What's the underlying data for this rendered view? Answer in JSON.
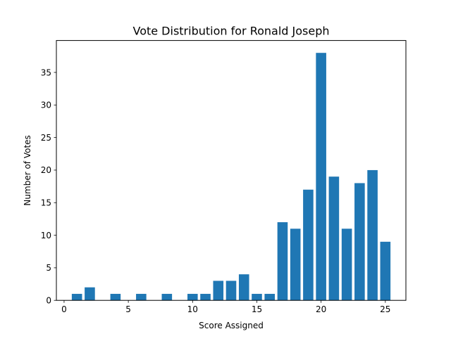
{
  "chart_data": {
    "type": "bar",
    "title": "Vote Distribution for Ronald Joseph",
    "xlabel": "Score Assigned",
    "ylabel": "Number of Votes",
    "x": [
      1,
      2,
      4,
      6,
      8,
      10,
      11,
      12,
      13,
      14,
      15,
      16,
      17,
      18,
      19,
      20,
      21,
      22,
      23,
      24,
      25
    ],
    "values": [
      1,
      2,
      1,
      1,
      1,
      1,
      1,
      3,
      3,
      4,
      1,
      1,
      12,
      11,
      17,
      38,
      19,
      11,
      18,
      20,
      9
    ],
    "xlim": [
      -0.6,
      26.6
    ],
    "ylim": [
      0,
      39.9
    ],
    "xticks": [
      0,
      5,
      10,
      15,
      20,
      25
    ],
    "yticks": [
      0,
      5,
      10,
      15,
      20,
      25,
      30,
      35
    ],
    "bar_color": "#1f77b4",
    "grid": false,
    "legend": "none"
  }
}
